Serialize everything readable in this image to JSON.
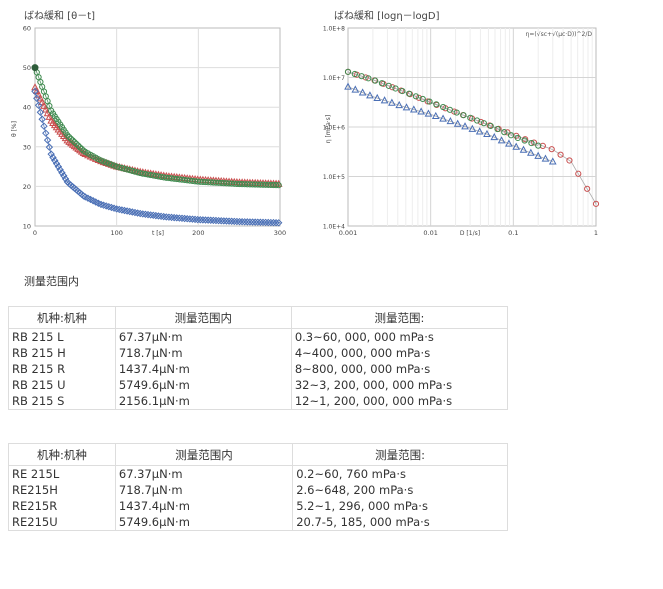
{
  "chart_data": [
    {
      "type": "scatter",
      "title": "ばね緩和 [θ－t]",
      "xlabel": "t [s]",
      "ylabel": "θ [%]",
      "xlim": [
        0,
        300
      ],
      "ylim": [
        10,
        60
      ],
      "x_ticks": [
        "0",
        "100",
        "200",
        "300"
      ],
      "y_ticks": [
        "10",
        "20",
        "30",
        "40",
        "50",
        "60"
      ],
      "grid": true,
      "series": [
        {
          "color": "#c94f4f",
          "marker": "triangle",
          "x": [
            0,
            20,
            40,
            60,
            80,
            100,
            130,
            160,
            200,
            250,
            300
          ],
          "y": [
            45,
            36.5,
            31.5,
            28.3,
            26.4,
            25.0,
            23.6,
            22.6,
            21.7,
            21.0,
            20.6
          ]
        },
        {
          "color": "#3f8a4f",
          "marker": "circle",
          "x": [
            0,
            20,
            40,
            60,
            80,
            100,
            130,
            160,
            200,
            250,
            300
          ],
          "y": [
            50,
            39,
            32.8,
            28.9,
            26.6,
            25.0,
            23.3,
            22.2,
            21.2,
            20.6,
            20.3
          ]
        },
        {
          "color": "#4a6fb5",
          "marker": "diamond",
          "x": [
            0,
            20,
            40,
            60,
            80,
            100,
            130,
            160,
            200,
            250,
            300
          ],
          "y": [
            44,
            28,
            21,
            17.5,
            15.5,
            14.3,
            13.1,
            12.3,
            11.6,
            11.1,
            10.8
          ]
        }
      ]
    },
    {
      "type": "scatter",
      "title": "ばね緩和 [logη－logD]",
      "xlabel": "D [1/s]",
      "ylabel": "η [mPa·s]",
      "x_scale": "log",
      "y_scale": "log",
      "xlim": [
        0.001,
        1
      ],
      "ylim": [
        10000,
        100000000
      ],
      "x_ticks": [
        "0.001",
        "0.01",
        "0.1",
        "1"
      ],
      "y_ticks": [
        "1.0E+4",
        "1.0E+5",
        "1.0E+6",
        "1.0E+7",
        "1.0E+8"
      ],
      "grid": true,
      "annotation": "η=(√sc+√(μc·D))^2/D",
      "series": [
        {
          "color": "#c94f4f",
          "marker": "circle",
          "x": [
            0.001,
            0.002,
            0.005,
            0.01,
            0.02,
            0.05,
            0.1,
            0.2,
            0.3,
            0.5,
            1.0
          ],
          "y": [
            13000000,
            9000000,
            5000000,
            3100000,
            2000000,
            1100000,
            700000,
            450000,
            350000,
            200000,
            28000
          ]
        },
        {
          "color": "#3f8a4f",
          "marker": "circle",
          "x": [
            0.001,
            0.002,
            0.005,
            0.01,
            0.02,
            0.05,
            0.1,
            0.2
          ],
          "y": [
            13000000,
            9000000,
            5000000,
            3200000,
            2000000,
            1100000,
            650000,
            420000
          ]
        },
        {
          "color": "#4a6fb5",
          "marker": "triangle",
          "x": [
            0.001,
            0.002,
            0.005,
            0.01,
            0.02,
            0.05,
            0.1,
            0.2,
            0.3
          ],
          "y": [
            6500000,
            4100000,
            2500000,
            1800000,
            1200000,
            700000,
            420000,
            260000,
            200000
          ]
        }
      ]
    }
  ],
  "section_title": "测量范围内",
  "table1": {
    "headers": [
      "机种:机种",
      "测量范围内",
      "测量范围:"
    ],
    "rows": [
      [
        "RB 215 L",
        "67.37μN·m",
        "0.3~60, 000, 000 mPa·s"
      ],
      [
        "RB 215 H",
        "718.7μN·m",
        "4~400, 000, 000 mPa·s"
      ],
      [
        "RB 215 R",
        "1437.4μN·m",
        "8~800, 000, 000 mPa·s"
      ],
      [
        "RB 215 U",
        "5749.6μN·m",
        "32~3, 200, 000, 000 mPa·s"
      ],
      [
        "RB 215 S",
        "2156.1μN·m",
        "12~1, 200, 000, 000 mPa·s"
      ]
    ]
  },
  "table2": {
    "headers": [
      "机种:机种",
      "测量范围内",
      "测量范围:"
    ],
    "rows": [
      [
        "RE 215L",
        "67.37μN·m",
        "0.2~60, 760 mPa·s"
      ],
      [
        "RE215H",
        "718.7μN·m",
        "2.6~648, 200 mPa·s"
      ],
      [
        "RE215R",
        "1437.4μN·m",
        "5.2~1, 296, 000 mPa·s"
      ],
      [
        "RE215U",
        "5749.6μN·m",
        "20.7-5, 185, 000 mPa·s"
      ]
    ]
  }
}
